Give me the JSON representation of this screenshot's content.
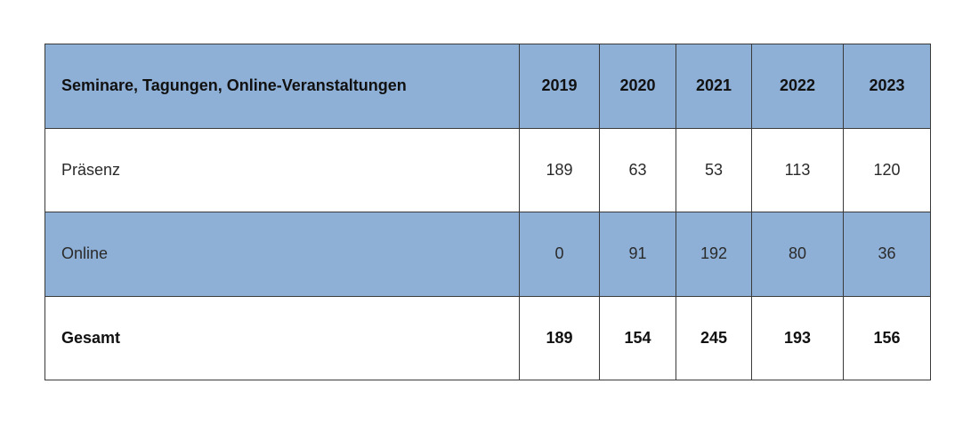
{
  "table": {
    "header": {
      "label": "Seminare, Tagungen, Online-Veranstaltungen",
      "years": [
        "2019",
        "2020",
        "2021",
        "2022",
        "2023"
      ]
    },
    "rows": [
      {
        "label": "Präsenz",
        "values": [
          "189",
          "63",
          "53",
          "113",
          "120"
        ]
      },
      {
        "label": "Online",
        "values": [
          "0",
          "91",
          "192",
          "80",
          "36"
        ]
      },
      {
        "label": "Gesamt",
        "values": [
          "189",
          "154",
          "245",
          "193",
          "156"
        ]
      }
    ]
  },
  "colors": {
    "header_bg": "#8fb0d6",
    "band_bg": "#8fb0d6",
    "row_bg": "#ffffff",
    "border": "#3a3a3a"
  }
}
